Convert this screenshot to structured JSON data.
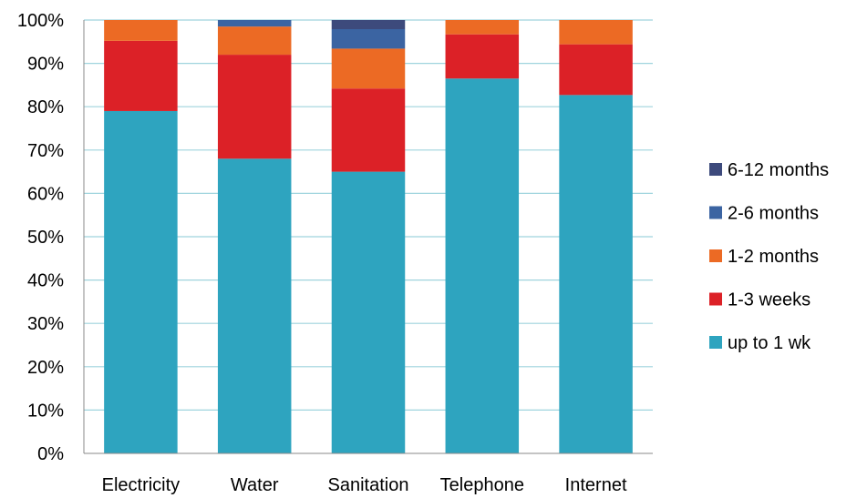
{
  "chart_data": {
    "type": "bar",
    "stacked": true,
    "percent_axis": true,
    "title": "",
    "xlabel": "",
    "ylabel": "",
    "ylim": [
      0,
      100
    ],
    "y_ticks": [
      "0%",
      "10%",
      "20%",
      "30%",
      "40%",
      "50%",
      "60%",
      "70%",
      "80%",
      "90%",
      "100%"
    ],
    "y_tick_values": [
      0,
      10,
      20,
      30,
      40,
      50,
      60,
      70,
      80,
      90,
      100
    ],
    "grid": true,
    "legend_position": "right",
    "categories": [
      "Electricity",
      "Water",
      "Sanitation",
      "Telephone",
      "Internet"
    ],
    "series": [
      {
        "name": "up to 1 wk",
        "color": "#2ea4bf",
        "values": [
          79,
          68,
          65,
          86.5,
          82.7
        ]
      },
      {
        "name": "1-3 weeks",
        "color": "#dc2127",
        "values": [
          16.2,
          24,
          19.2,
          10.2,
          11.7
        ]
      },
      {
        "name": "1-2 months",
        "color": "#ec6a24",
        "values": [
          4.8,
          6.5,
          9.2,
          3.3,
          5.6
        ]
      },
      {
        "name": "2-6 months",
        "color": "#3b64a2",
        "values": [
          0,
          1.5,
          4.5,
          0,
          0
        ]
      },
      {
        "name": "6-12 months",
        "color": "#3d4a7c",
        "values": [
          0,
          0,
          2.1,
          0,
          0
        ]
      }
    ]
  }
}
